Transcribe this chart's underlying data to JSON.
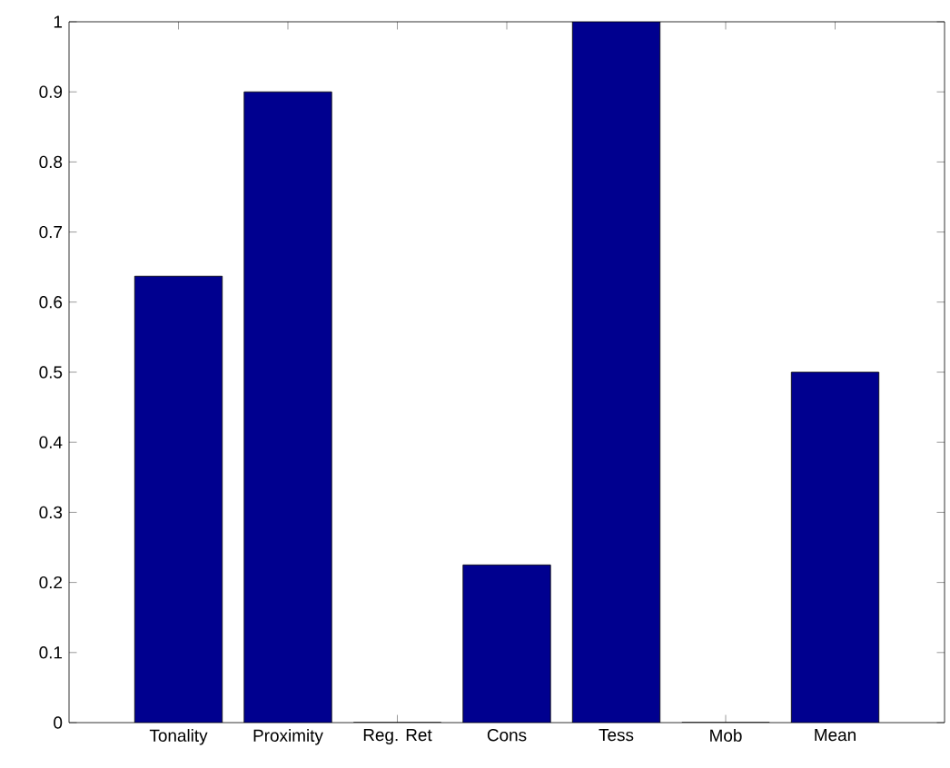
{
  "chart_data": {
    "type": "bar",
    "categories": [
      "Tonality",
      "Proximity",
      "Reg. Ret",
      "Cons",
      "Tess",
      "Mob",
      "Mean"
    ],
    "values": [
      0.637,
      0.9,
      0,
      0.225,
      1.0,
      0,
      0.5
    ],
    "color": "#00008f",
    "ylim": [
      0,
      1
    ],
    "yticks": [
      0,
      0.1,
      0.2,
      0.3,
      0.4,
      0.5,
      0.6,
      0.7,
      0.8,
      0.9,
      1
    ],
    "grid": false
  }
}
